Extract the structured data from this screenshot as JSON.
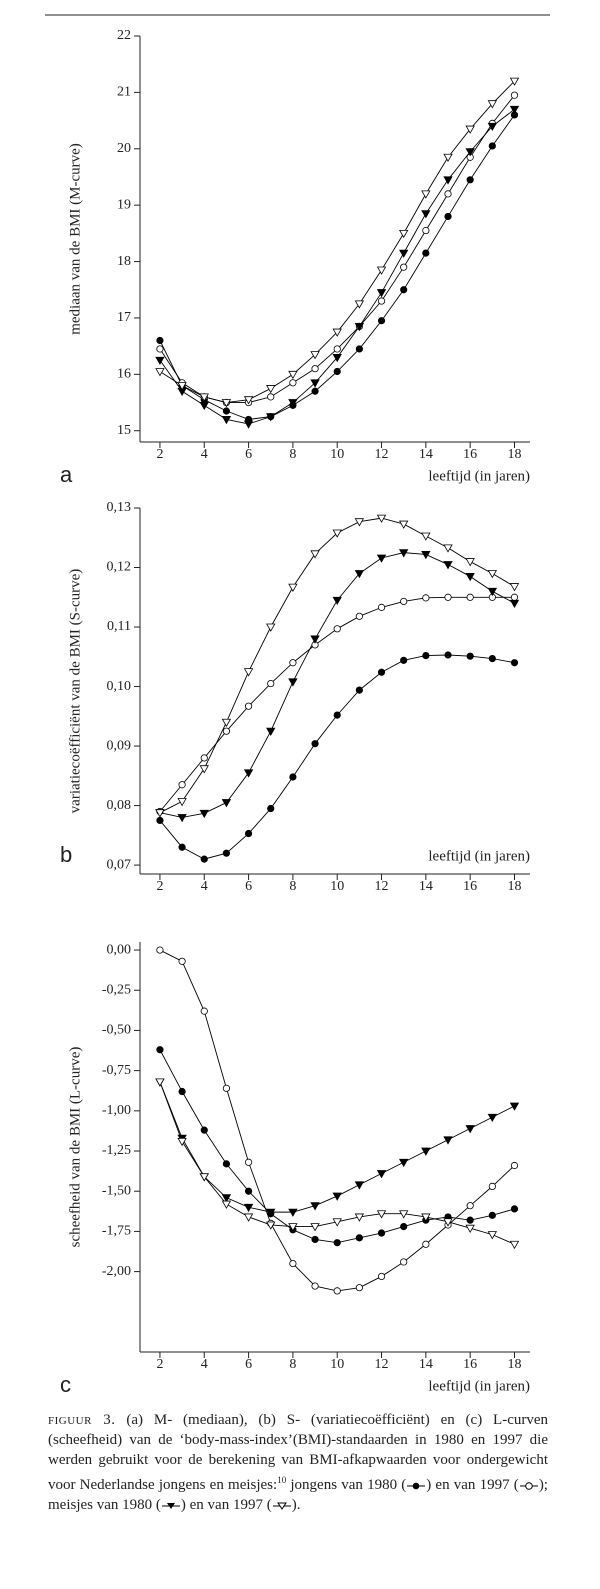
{
  "chart_data": [
    {
      "type": "line",
      "panel": "a",
      "ylabel": "mediaan van de BMI (M-curve)",
      "xlabel": "leeftijd (in jaren)",
      "x": [
        2,
        3,
        4,
        5,
        6,
        7,
        8,
        9,
        10,
        11,
        12,
        13,
        14,
        15,
        16,
        17,
        18
      ],
      "xlim": [
        1.1,
        18.7
      ],
      "xticks": [
        2,
        4,
        6,
        8,
        10,
        12,
        14,
        16,
        18
      ],
      "ylim": [
        14.8,
        22
      ],
      "yticks": [
        15,
        16,
        17,
        18,
        19,
        20,
        21,
        22
      ],
      "series": [
        {
          "color": "#000",
          "marker": "circle",
          "marker_fill": "#000",
          "values": [
            16.6,
            15.8,
            15.55,
            15.35,
            15.2,
            15.25,
            15.45,
            15.7,
            16.05,
            16.45,
            16.95,
            17.5,
            18.15,
            18.8,
            19.45,
            20.05,
            20.6
          ]
        },
        {
          "color": "#000",
          "marker": "circle",
          "marker_fill": "#fff",
          "values": [
            16.45,
            15.85,
            15.6,
            15.5,
            15.5,
            15.6,
            15.85,
            16.1,
            16.45,
            16.85,
            17.3,
            17.9,
            18.55,
            19.2,
            19.85,
            20.45,
            20.95
          ]
        },
        {
          "color": "#000",
          "marker": "triangle-down",
          "marker_fill": "#000",
          "values": [
            16.25,
            15.7,
            15.45,
            15.2,
            15.12,
            15.25,
            15.5,
            15.85,
            16.3,
            16.85,
            17.45,
            18.15,
            18.85,
            19.45,
            19.95,
            20.4,
            20.7
          ]
        },
        {
          "color": "#000",
          "marker": "triangle-down",
          "marker_fill": "#fff",
          "values": [
            16.05,
            15.8,
            15.6,
            15.5,
            15.55,
            15.75,
            16.0,
            16.35,
            16.75,
            17.25,
            17.85,
            18.5,
            19.2,
            19.85,
            20.35,
            20.8,
            21.2
          ]
        }
      ]
    },
    {
      "type": "line",
      "panel": "b",
      "ylabel": "variatiecoëfficiënt van de BMI (S-curve)",
      "xlabel": "leeftijd (in jaren)",
      "x": [
        2,
        3,
        4,
        5,
        6,
        7,
        8,
        9,
        10,
        11,
        12,
        13,
        14,
        15,
        16,
        17,
        18
      ],
      "xlim": [
        1.1,
        18.7
      ],
      "xticks": [
        2,
        4,
        6,
        8,
        10,
        12,
        14,
        16,
        18
      ],
      "ylim": [
        0.0685,
        0.13
      ],
      "yticks": [
        {
          "value": 0.07,
          "label": "0,07"
        },
        {
          "value": 0.08,
          "label": "0,08"
        },
        {
          "value": 0.09,
          "label": "0,09"
        },
        {
          "value": 0.1,
          "label": "0,10"
        },
        {
          "value": 0.11,
          "label": "0,11"
        },
        {
          "value": 0.12,
          "label": "0,12"
        },
        {
          "value": 0.13,
          "label": "0,13"
        }
      ],
      "series": [
        {
          "color": "#000",
          "marker": "circle",
          "marker_fill": "#000",
          "values": [
            0.0775,
            0.073,
            0.071,
            0.072,
            0.0753,
            0.0795,
            0.0848,
            0.0904,
            0.0952,
            0.0994,
            0.1024,
            0.1044,
            0.1052,
            0.1053,
            0.1051,
            0.1047,
            0.104
          ]
        },
        {
          "color": "#000",
          "marker": "circle",
          "marker_fill": "#fff",
          "values": [
            0.079,
            0.0835,
            0.088,
            0.0925,
            0.0967,
            0.1005,
            0.104,
            0.107,
            0.1097,
            0.1118,
            0.1133,
            0.1143,
            0.1149,
            0.115,
            0.115,
            0.115,
            0.115
          ]
        },
        {
          "color": "#000",
          "marker": "triangle-down",
          "marker_fill": "#000",
          "values": [
            0.0788,
            0.078,
            0.0787,
            0.0805,
            0.0855,
            0.0925,
            0.1008,
            0.108,
            0.1145,
            0.119,
            0.1216,
            0.1225,
            0.1222,
            0.1205,
            0.1185,
            0.116,
            0.114
          ]
        },
        {
          "color": "#000",
          "marker": "triangle-down",
          "marker_fill": "#fff",
          "values": [
            0.0788,
            0.0807,
            0.0862,
            0.094,
            0.1025,
            0.11,
            0.1167,
            0.1223,
            0.1258,
            0.1277,
            0.1283,
            0.1273,
            0.1253,
            0.1233,
            0.121,
            0.119,
            0.1168
          ]
        }
      ]
    },
    {
      "type": "line",
      "panel": "c",
      "ylabel": "scheefheid van de BMI (L-curve)",
      "xlabel": "leeftijd (in jaren)",
      "x": [
        2,
        3,
        4,
        5,
        6,
        7,
        8,
        9,
        10,
        11,
        12,
        13,
        14,
        15,
        16,
        17,
        18
      ],
      "xlim": [
        1.1,
        18.7
      ],
      "xticks": [
        2,
        4,
        6,
        8,
        10,
        12,
        14,
        16,
        18
      ],
      "ylim": [
        -2.5,
        0.05
      ],
      "yticks": [
        {
          "value": 0,
          "label": "0,00"
        },
        {
          "value": -0.25,
          "label": "-0,25"
        },
        {
          "value": -0.5,
          "label": "-0,50"
        },
        {
          "value": -0.75,
          "label": "-0,75"
        },
        {
          "value": -1,
          "label": "-1,00"
        },
        {
          "value": -1.25,
          "label": "-1,25"
        },
        {
          "value": -1.5,
          "label": "-1,50"
        },
        {
          "value": -1.75,
          "label": "-1,75"
        },
        {
          "value": -2,
          "label": "-2,00"
        }
      ],
      "series": [
        {
          "color": "#000",
          "marker": "circle",
          "marker_fill": "#000",
          "values": [
            -0.62,
            -0.88,
            -1.12,
            -1.33,
            -1.5,
            -1.64,
            -1.74,
            -1.8,
            -1.82,
            -1.79,
            -1.76,
            -1.72,
            -1.68,
            -1.66,
            -1.68,
            -1.65,
            -1.61
          ]
        },
        {
          "color": "#000",
          "marker": "circle",
          "marker_fill": "#fff",
          "values": [
            0,
            -0.07,
            -0.38,
            -0.86,
            -1.32,
            -1.7,
            -1.95,
            -2.09,
            -2.12,
            -2.1,
            -2.03,
            -1.94,
            -1.83,
            -1.71,
            -1.59,
            -1.47,
            -1.34
          ]
        },
        {
          "color": "#000",
          "marker": "triangle-down",
          "marker_fill": "#000",
          "values": [
            -0.82,
            -1.17,
            -1.41,
            -1.54,
            -1.6,
            -1.63,
            -1.63,
            -1.59,
            -1.53,
            -1.46,
            -1.39,
            -1.32,
            -1.25,
            -1.18,
            -1.11,
            -1.04,
            -0.97
          ]
        },
        {
          "color": "#000",
          "marker": "triangle-down",
          "marker_fill": "#fff",
          "values": [
            -0.82,
            -1.19,
            -1.41,
            -1.58,
            -1.66,
            -1.71,
            -1.72,
            -1.72,
            -1.69,
            -1.66,
            -1.64,
            -1.64,
            -1.66,
            -1.69,
            -1.73,
            -1.77,
            -1.83
          ]
        }
      ]
    }
  ],
  "caption": {
    "label": "Figuur 3.",
    "text": "(a) M- (mediaan), (b) S- (variatiecoëfficiënt) en (c) L-curven (scheefheid) van de ‘body-mass-index’(BMI)-standaarden in 1980 en 1997 die werden gebruikt voor de berekening van BMI-afkapwaarden voor ondergewicht voor Nederlandse jongens en meisjes:",
    "ref": "10",
    "parts": [
      " jongens van 1980 (",
      ") en van 1997 (",
      "); meisjes van 1980 (",
      ") en van 1997 (",
      ")."
    ]
  }
}
